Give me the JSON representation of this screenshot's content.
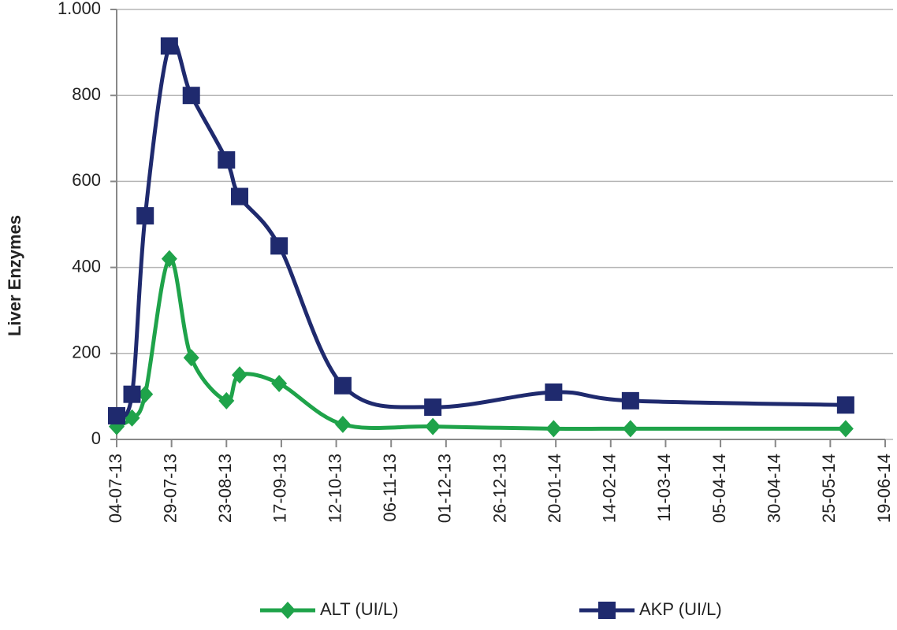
{
  "chart_data": {
    "type": "line",
    "y_label": "Liver Enzymes",
    "x": [
      "2013-07-04",
      "2013-07-11",
      "2013-07-17",
      "2013-07-28",
      "2013-08-07",
      "2013-08-23",
      "2013-08-29",
      "2013-09-16",
      "2013-10-15",
      "2013-11-25",
      "2014-01-19",
      "2014-02-23",
      "2014-06-01"
    ],
    "series": [
      {
        "name": "ALT (UI/L)",
        "color": "#1fa34a",
        "marker": "diamond",
        "values": [
          30,
          50,
          105,
          420,
          190,
          90,
          150,
          130,
          35,
          30,
          25,
          25,
          25
        ]
      },
      {
        "name": "AKP (UI/L)",
        "color": "#1f2a6e",
        "marker": "square",
        "values": [
          55,
          105,
          520,
          915,
          800,
          650,
          565,
          450,
          125,
          75,
          110,
          90,
          80
        ]
      }
    ],
    "xlim": [
      "2013-07-04",
      "2014-06-19"
    ],
    "xticks": [
      {
        "value": "2013-07-04",
        "label": "04-07-13"
      },
      {
        "value": "2013-07-29",
        "label": "29-07-13"
      },
      {
        "value": "2013-08-23",
        "label": "23-08-13"
      },
      {
        "value": "2013-09-17",
        "label": "17-09-13"
      },
      {
        "value": "2013-10-12",
        "label": "12-10-13"
      },
      {
        "value": "2013-11-06",
        "label": "06-11-13"
      },
      {
        "value": "2013-12-01",
        "label": "01-12-13"
      },
      {
        "value": "2013-12-26",
        "label": "26-12-13"
      },
      {
        "value": "2014-01-20",
        "label": "20-01-14"
      },
      {
        "value": "2014-02-14",
        "label": "14-02-14"
      },
      {
        "value": "2014-03-11",
        "label": "11-03-14"
      },
      {
        "value": "2014-04-05",
        "label": "05-04-14"
      },
      {
        "value": "2014-04-30",
        "label": "30-04-14"
      },
      {
        "value": "2014-05-25",
        "label": "25-05-14"
      },
      {
        "value": "2014-06-19",
        "label": "19-06-14"
      }
    ],
    "ylim": [
      0,
      1000
    ],
    "yticks": [
      0,
      200,
      400,
      600,
      800,
      {
        "value": 1000,
        "label": "1.000"
      }
    ],
    "grid": true,
    "legend": "bottom",
    "smooth": true
  }
}
